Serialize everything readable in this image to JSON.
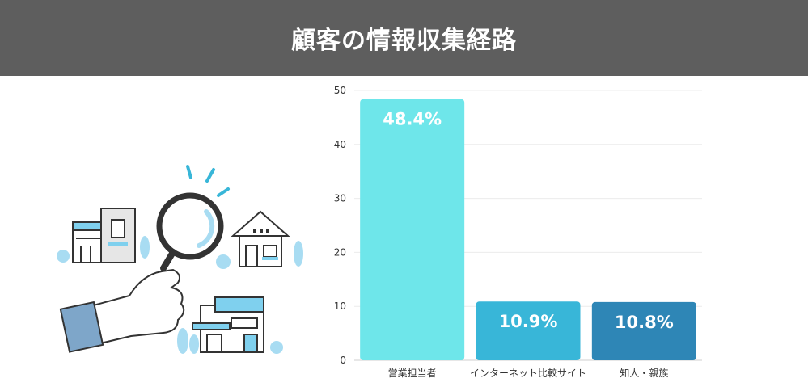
{
  "header": {
    "title": "顧客の情報収集経路"
  },
  "colors": {
    "header_bg": "#5e5e5e",
    "accent_light": "#7fd0ee"
  },
  "icons": [
    "magnifier-icon",
    "hand-icon",
    "house-icon"
  ],
  "chart_data": {
    "type": "bar",
    "categories": [
      "営業担当者",
      "インターネット比較サイト",
      "知人・親族"
    ],
    "values": [
      48.4,
      10.9,
      10.8
    ],
    "data_labels": [
      "48.4%",
      "10.9%",
      "10.8%"
    ],
    "bar_colors": [
      "#6ee6ea",
      "#38b6d8",
      "#2e86b6"
    ],
    "title": "",
    "xlabel": "",
    "ylabel": "",
    "ylim": [
      0,
      50
    ],
    "yticks": [
      0,
      10,
      20,
      30,
      40,
      50
    ],
    "grid": true,
    "legend": "none"
  }
}
